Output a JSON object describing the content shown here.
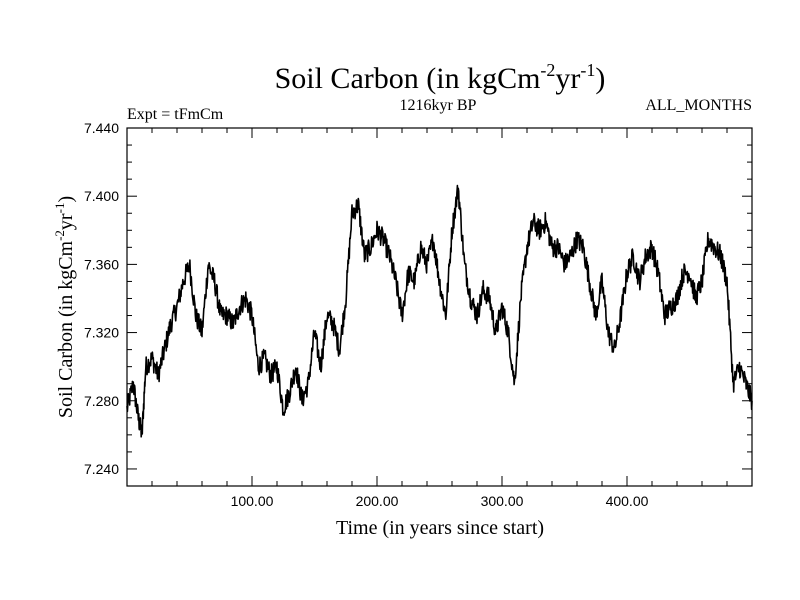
{
  "chart_data": {
    "type": "line",
    "title_main": "Soil Carbon (in kgCm",
    "title_sup1": "-2",
    "title_mid": "yr",
    "title_sup2": "-1",
    "title_end": ")",
    "subtitle": "1216kyr BP",
    "experiment": "Expt = tFmCm",
    "months": "ALL_MONTHS",
    "xlabel": "Time (in years since start)",
    "ylabel_main": "Soil Carbon (in kgCm",
    "ylabel_sup1": "-2",
    "ylabel_mid": "yr",
    "ylabel_sup2": "-1",
    "ylabel_end": ")",
    "xlim": [
      0,
      500
    ],
    "ylim": [
      7.23,
      7.44
    ],
    "x_ticks": [
      100,
      200,
      300,
      400
    ],
    "x_tick_labels": [
      "100.00",
      "200.00",
      "300.00",
      "400.00"
    ],
    "y_ticks": [
      7.24,
      7.28,
      7.32,
      7.36,
      7.4,
      7.44
    ],
    "y_tick_labels": [
      "7.240",
      "7.280",
      "7.320",
      "7.360",
      "7.400",
      "7.440"
    ],
    "series": [
      {
        "name": "Soil Carbon",
        "x": [
          0,
          5,
          9,
          12,
          15,
          20,
          25,
          30,
          35,
          40,
          45,
          50,
          55,
          60,
          65,
          70,
          75,
          80,
          85,
          90,
          95,
          100,
          105,
          110,
          115,
          120,
          125,
          130,
          135,
          140,
          145,
          150,
          155,
          160,
          165,
          170,
          175,
          180,
          185,
          190,
          195,
          200,
          205,
          210,
          215,
          220,
          225,
          230,
          235,
          240,
          245,
          250,
          255,
          260,
          265,
          270,
          275,
          280,
          285,
          290,
          295,
          300,
          305,
          310,
          315,
          320,
          325,
          330,
          335,
          340,
          345,
          350,
          355,
          360,
          365,
          370,
          375,
          380,
          385,
          390,
          395,
          400,
          405,
          410,
          415,
          420,
          425,
          430,
          435,
          440,
          445,
          450,
          455,
          460,
          465,
          470,
          475,
          480,
          485,
          490,
          495,
          500
        ],
        "values": [
          7.275,
          7.29,
          7.27,
          7.26,
          7.3,
          7.305,
          7.295,
          7.31,
          7.325,
          7.335,
          7.35,
          7.36,
          7.33,
          7.32,
          7.36,
          7.35,
          7.33,
          7.33,
          7.325,
          7.335,
          7.34,
          7.33,
          7.3,
          7.305,
          7.295,
          7.3,
          7.275,
          7.285,
          7.3,
          7.28,
          7.29,
          7.32,
          7.3,
          7.33,
          7.325,
          7.31,
          7.34,
          7.39,
          7.395,
          7.365,
          7.37,
          7.38,
          7.375,
          7.365,
          7.35,
          7.33,
          7.355,
          7.35,
          7.37,
          7.36,
          7.375,
          7.35,
          7.33,
          7.38,
          7.405,
          7.36,
          7.34,
          7.33,
          7.345,
          7.34,
          7.32,
          7.335,
          7.32,
          7.29,
          7.34,
          7.37,
          7.385,
          7.38,
          7.385,
          7.37,
          7.37,
          7.36,
          7.365,
          7.375,
          7.37,
          7.35,
          7.33,
          7.35,
          7.32,
          7.31,
          7.33,
          7.355,
          7.365,
          7.35,
          7.365,
          7.37,
          7.355,
          7.33,
          7.335,
          7.34,
          7.355,
          7.355,
          7.34,
          7.35,
          7.375,
          7.37,
          7.365,
          7.35,
          7.29,
          7.3,
          7.29,
          7.28
        ]
      }
    ]
  }
}
